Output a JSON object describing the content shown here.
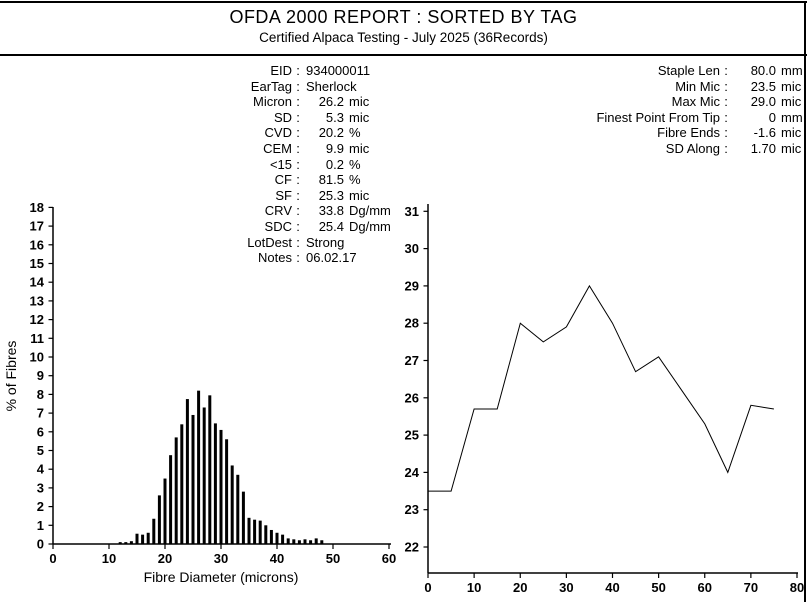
{
  "report": {
    "title": "OFDA 2000 REPORT : SORTED BY TAG",
    "subtitle": "Certified Alpaca Testing - July 2025 (36Records)"
  },
  "sample_stats": [
    {
      "label": "EID",
      "value": "934000011",
      "align": "left"
    },
    {
      "label": "EarTag",
      "value": "Sherlock",
      "align": "left"
    },
    {
      "label": "Micron",
      "value": "26.2",
      "unit": "mic"
    },
    {
      "label": "SD",
      "value": "5.3",
      "unit": "mic"
    },
    {
      "label": "CVD",
      "value": "20.2",
      "unit": "%"
    },
    {
      "label": "CEM",
      "value": "9.9",
      "unit": "mic"
    },
    {
      "label": "<15",
      "value": "0.2",
      "unit": "%"
    },
    {
      "label": "CF",
      "value": "81.5",
      "unit": "%"
    },
    {
      "label": "SF",
      "value": "25.3",
      "unit": "mic"
    },
    {
      "label": "CRV",
      "value": "33.8",
      "unit": "Dg/mm"
    },
    {
      "label": "SDC",
      "value": "25.4",
      "unit": "Dg/mm"
    },
    {
      "label": "LotDest",
      "value": "Strong",
      "align": "left"
    },
    {
      "label": "Notes",
      "value": "06.02.17",
      "align": "left"
    }
  ],
  "staple_stats": [
    {
      "label": "Staple Len",
      "value": "80.0",
      "unit": "mm"
    },
    {
      "label": "Min Mic",
      "value": "23.5",
      "unit": "mic"
    },
    {
      "label": "Max Mic",
      "value": "29.0",
      "unit": "mic"
    },
    {
      "label": "Finest Point From Tip",
      "value": "0",
      "unit": "mm"
    },
    {
      "label": "Fibre Ends",
      "value": "-1.6",
      "unit": "mic"
    },
    {
      "label": "SD Along",
      "value": "1.70",
      "unit": "mic"
    }
  ],
  "chart_data": [
    {
      "type": "bar",
      "xlabel": "Fibre Diameter (microns)",
      "ylabel": "% of Fibres",
      "xlim": [
        0,
        60
      ],
      "ylim": [
        0,
        18
      ],
      "x_tick_step": 10,
      "y_tick_step": 1,
      "grid": false,
      "bar_color": "#000000",
      "x": [
        12,
        13,
        14,
        15,
        16,
        17,
        18,
        19,
        20,
        21,
        22,
        23,
        24,
        25,
        26,
        27,
        28,
        29,
        30,
        31,
        32,
        33,
        34,
        35,
        36,
        37,
        38,
        39,
        40,
        41,
        42,
        43,
        44,
        45,
        46,
        47,
        48
      ],
      "values": [
        0.1,
        0.1,
        0.15,
        0.55,
        0.5,
        0.6,
        1.35,
        2.6,
        3.5,
        4.75,
        5.7,
        6.4,
        7.75,
        6.9,
        8.2,
        7.3,
        7.95,
        6.45,
        6.1,
        5.6,
        4.2,
        3.7,
        2.8,
        1.4,
        1.3,
        1.25,
        1.0,
        0.75,
        0.6,
        0.5,
        0.3,
        0.25,
        0.2,
        0.25,
        0.2,
        0.3,
        0.2
      ]
    },
    {
      "type": "line",
      "xlabel": "",
      "ylabel": "",
      "xlim": [
        0,
        80
      ],
      "ylim": [
        22,
        31
      ],
      "x_tick_step": 10,
      "y_tick_step": 1,
      "grid": false,
      "line_color": "#000000",
      "x": [
        0,
        5,
        10,
        15,
        20,
        25,
        30,
        35,
        40,
        45,
        50,
        55,
        60,
        65,
        70,
        75
      ],
      "values": [
        23.5,
        23.5,
        25.7,
        25.7,
        28.0,
        27.5,
        27.9,
        29.0,
        28.0,
        26.7,
        27.1,
        26.2,
        25.3,
        24.0,
        25.8,
        25.7
      ]
    }
  ]
}
